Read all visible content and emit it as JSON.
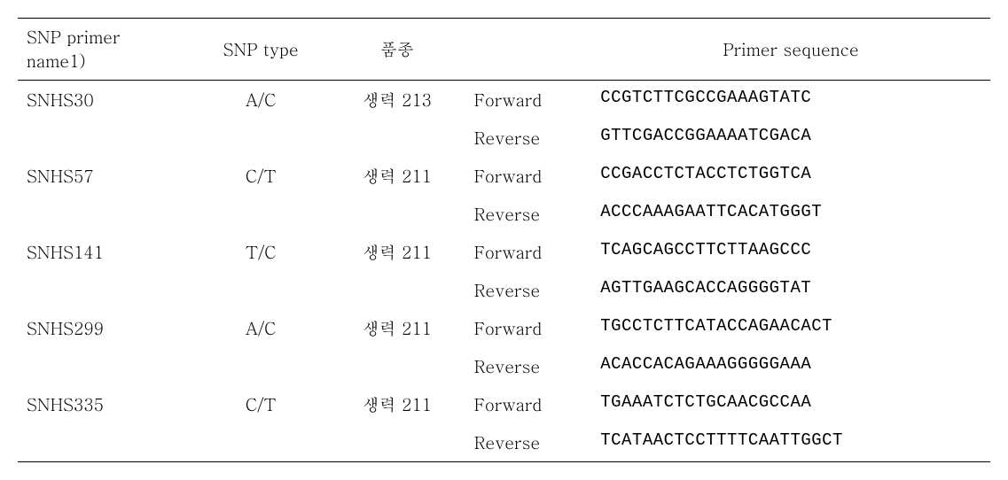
{
  "table": {
    "headers": {
      "name": "SNP primer name1)",
      "type": "SNP type",
      "variety": "품종",
      "sequence": "Primer sequence"
    },
    "rows": [
      {
        "name": "SNHS30",
        "type": "A/C",
        "variety": "생력 213",
        "sub": [
          {
            "direction": "Forward",
            "sequence": "CCGTCTTCGCCGAAAGTATC"
          },
          {
            "direction": "Reverse",
            "sequence": "GTTCGACCGGAAAATCGACA"
          }
        ]
      },
      {
        "name": "SNHS57",
        "type": "C/T",
        "variety": "생력 211",
        "sub": [
          {
            "direction": "Forward",
            "sequence": "CCGACCTCTACCTCTGGTCA"
          },
          {
            "direction": "Reverse",
            "sequence": "ACCCAAAGAATTCACATGGGT"
          }
        ]
      },
      {
        "name": "SNHS141",
        "type": "T/C",
        "variety": "생력 211",
        "sub": [
          {
            "direction": "Forward",
            "sequence": "TCAGCAGCCTTCTTAAGCCC"
          },
          {
            "direction": "Reverse",
            "sequence": "AGTTGAAGCACCAGGGGTAT"
          }
        ]
      },
      {
        "name": "SNHS299",
        "type": "A/C",
        "variety": "생력 211",
        "sub": [
          {
            "direction": "Forward",
            "sequence": "TGCCTCTTCATACCAGAACACT"
          },
          {
            "direction": "Reverse",
            "sequence": "ACACCACAGAAAGGGGGAAA"
          }
        ]
      },
      {
        "name": "SNHS335",
        "type": "C/T",
        "variety": "생력 211",
        "sub": [
          {
            "direction": "Forward",
            "sequence": "TGAAATCTCTGCAACGCCAA"
          },
          {
            "direction": "Reverse",
            "sequence": "TCATAACTCCTTTTCAATTGGCT"
          }
        ]
      }
    ]
  },
  "style": {
    "font_size": 19,
    "text_color": "#000000",
    "background_color": "#ffffff",
    "border_color": "#000000",
    "col_widths_pct": [
      18,
      14,
      14,
      13,
      41
    ]
  }
}
